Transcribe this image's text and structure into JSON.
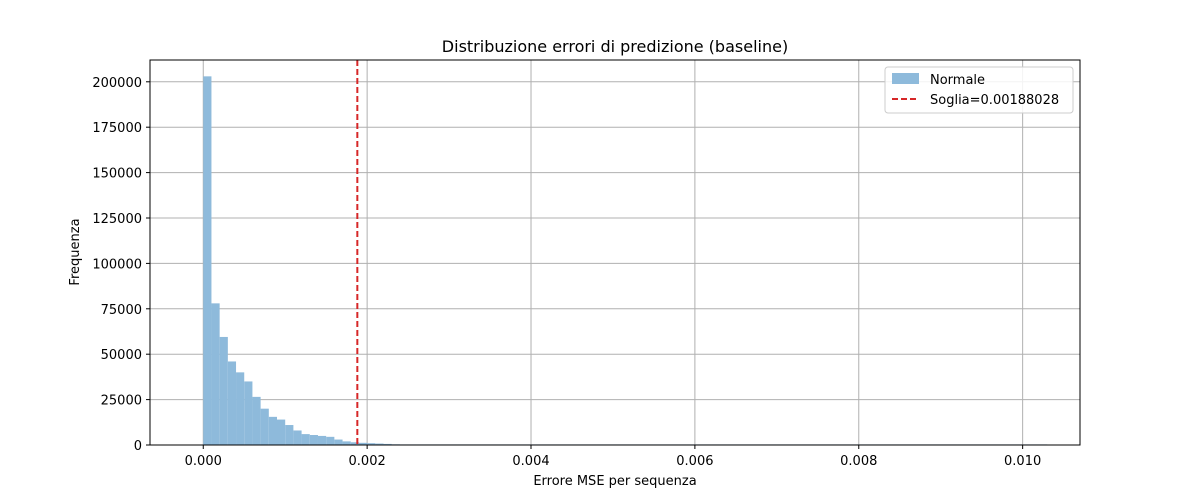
{
  "chart_data": {
    "type": "bar",
    "title": "Distribuzione errori di predizione (baseline)",
    "xlabel": "Errore MSE per sequenza",
    "ylabel": "Frequenza",
    "xlim": [
      -0.00065,
      0.0107
    ],
    "ylim": [
      0,
      212000
    ],
    "xticks": [
      0.0,
      0.002,
      0.004,
      0.006,
      0.008,
      0.01
    ],
    "xtick_labels": [
      "0.000",
      "0.002",
      "0.004",
      "0.006",
      "0.008",
      "0.010"
    ],
    "yticks": [
      0,
      25000,
      50000,
      75000,
      100000,
      125000,
      150000,
      175000,
      200000
    ],
    "ytick_labels": [
      "0",
      "25000",
      "50000",
      "75000",
      "100000",
      "125000",
      "150000",
      "175000",
      "200000"
    ],
    "grid": true,
    "legend_position": "top-right",
    "bin_start": 0.0,
    "bin_width": 0.0001,
    "series": [
      {
        "name": "Normale",
        "color": "#8ebadb",
        "values": [
          203000,
          78000,
          59500,
          46000,
          40000,
          35000,
          26500,
          20000,
          15500,
          14000,
          11000,
          8000,
          6000,
          5500,
          5000,
          4500,
          3000,
          2000,
          1500,
          1200,
          1000,
          800,
          600,
          400,
          300,
          200,
          150,
          100,
          80,
          60,
          50,
          40,
          30,
          25,
          20,
          15,
          12,
          10,
          8,
          6,
          5,
          4,
          3,
          3,
          2,
          2,
          2,
          1,
          1,
          1,
          1,
          1,
          1,
          1,
          1,
          1,
          1,
          1,
          1,
          1,
          1,
          1,
          1,
          1,
          1,
          1,
          1,
          1,
          1,
          1,
          1,
          1,
          1,
          1,
          1,
          1,
          1,
          1,
          1,
          1,
          1,
          1,
          1,
          1,
          1,
          1,
          1,
          1,
          1,
          1,
          1,
          1,
          1,
          1,
          1,
          1,
          1,
          1,
          1,
          1,
          1,
          1,
          1
        ]
      }
    ],
    "threshold": {
      "label": "Soglia=0.00188028",
      "value": 0.00188028,
      "color": "#d62728"
    },
    "legend": [
      {
        "label": "Normale",
        "kind": "patch",
        "color": "#8ebadb"
      },
      {
        "label": "Soglia=0.00188028",
        "kind": "dashed-line",
        "color": "#d62728"
      }
    ]
  }
}
